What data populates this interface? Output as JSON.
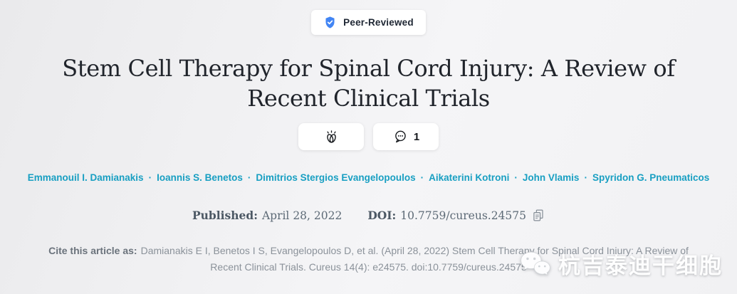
{
  "badge": {
    "label": "Peer-Reviewed",
    "shield_color": "#4285f4"
  },
  "title": "Stem Cell Therapy for Spinal Cord Injury: A Review of Recent Clinical Trials",
  "actions": {
    "comments": {
      "count": "1"
    }
  },
  "authors": {
    "names": [
      "Emmanouil I. Damianakis",
      "Ioannis S. Benetos",
      "Dimitrios Stergios Evangelopoulos",
      "Aikaterini Kotroni",
      "John Vlamis",
      "Spyridon G. Pneumaticos"
    ],
    "separator": "·",
    "color": "#189fc2"
  },
  "meta": {
    "published_label": "Published:",
    "published_date": "April 28, 2022",
    "doi_label": "DOI:",
    "doi_value": "10.7759/cureus.24575"
  },
  "citation": {
    "label": "Cite this article as:",
    "text": "Damianakis E I, Benetos I S, Evangelopoulos D, et al. (April 28, 2022) Stem Cell Therapy for Spinal Cord Injury: A Review of Recent Clinical Trials. Cureus 14(4): e24575. doi:10.7759/cureus.24575"
  },
  "watermark": {
    "text": "杭吉泰迪干细胞"
  }
}
